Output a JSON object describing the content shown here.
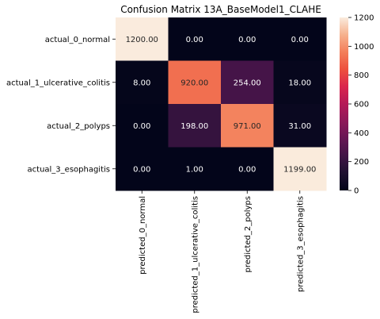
{
  "chart_data": {
    "type": "heatmap",
    "title": "Confusion Matrix 13A_BaseModel1_CLAHE",
    "row_labels": [
      "actual_0_normal",
      "actual_1_ulcerative_colitis",
      "actual_2_polyps",
      "actual_3_esophagitis"
    ],
    "col_labels": [
      "predicted_0_normal",
      "predicted_1_ulcerative_colitis",
      "predicted_2_polyps",
      "predicted_3_esophagitis"
    ],
    "values": [
      [
        1200,
        0,
        0,
        0
      ],
      [
        8,
        920,
        254,
        18
      ],
      [
        0,
        198,
        971,
        31
      ],
      [
        0,
        1,
        0,
        1199
      ]
    ],
    "cell_text": [
      [
        "1200.00",
        "0.00",
        "0.00",
        "0.00"
      ],
      [
        "8.00",
        "920.00",
        "254.00",
        "18.00"
      ],
      [
        "0.00",
        "198.00",
        "971.00",
        "31.00"
      ],
      [
        "0.00",
        "1.00",
        "0.00",
        "1199.00"
      ]
    ],
    "colorbar": {
      "min": 0,
      "max": 1200,
      "ticks": [
        "0",
        "200",
        "400",
        "600",
        "800",
        "1000",
        "1200"
      ],
      "colormap": "rocket"
    }
  }
}
